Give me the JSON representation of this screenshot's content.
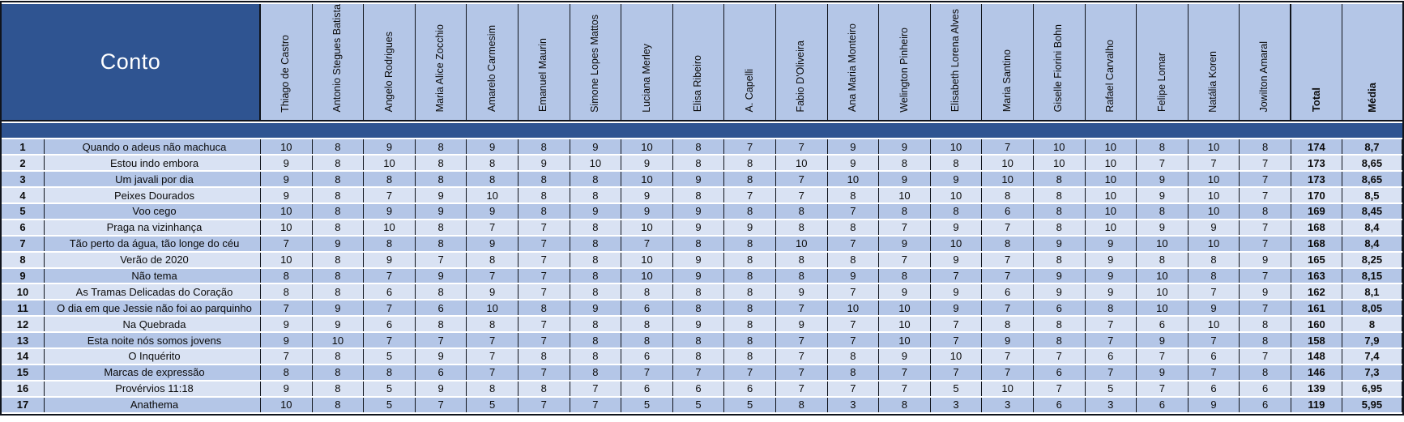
{
  "colors": {
    "header_dark_blue": "#2F5491",
    "header_light_blue": "#B4C6E7",
    "row_stripe_light": "#D9E2F3",
    "grid_border": "#10141C",
    "cell_text": "#0B0B0B",
    "title_text": "#FFFFFF"
  },
  "table": {
    "corner_label": "Conto",
    "total_label": "Total",
    "media_label": "Média",
    "judges": [
      "Thiago de Castro",
      "Antonio Stegues Batista",
      "Angelo Rodrigues",
      "Maria Alice Zocchio",
      "Amarelo Carmesim",
      "Emanuel Maurin",
      "Simone Lopes Mattos",
      "Luciana Merley",
      "Elisa Ribeiro",
      "A. Capelli",
      "Fabio D'Oliveira",
      "Ana Maria Monteiro",
      "Welington Pinheiro",
      "Elisabeth Lorena Alves",
      "Maria Santino",
      "Giselle Fiorini Bohn",
      "Rafael Carvalho",
      "Felipe Lomar",
      "Natália Koren",
      "Jowilton Amaral"
    ],
    "rows": [
      {
        "rank": 1,
        "title": "Quando o adeus não machuca",
        "scores": [
          10,
          8,
          9,
          8,
          9,
          8,
          9,
          10,
          8,
          7,
          7,
          9,
          9,
          10,
          7,
          10,
          10,
          8,
          10,
          8
        ],
        "total": 174,
        "media": "8,7"
      },
      {
        "rank": 2,
        "title": "Estou indo embora",
        "scores": [
          9,
          8,
          10,
          8,
          8,
          9,
          10,
          9,
          8,
          8,
          10,
          9,
          8,
          8,
          10,
          10,
          10,
          7,
          7,
          7
        ],
        "total": 173,
        "media": "8,65"
      },
      {
        "rank": 3,
        "title": "Um javali por dia",
        "scores": [
          9,
          8,
          8,
          8,
          8,
          8,
          8,
          10,
          9,
          8,
          7,
          10,
          9,
          9,
          10,
          8,
          10,
          9,
          10,
          7
        ],
        "total": 173,
        "media": "8,65"
      },
      {
        "rank": 4,
        "title": "Peixes Dourados",
        "scores": [
          9,
          8,
          7,
          9,
          10,
          8,
          8,
          9,
          8,
          7,
          7,
          8,
          10,
          10,
          8,
          8,
          10,
          9,
          10,
          7
        ],
        "total": 170,
        "media": "8,5"
      },
      {
        "rank": 5,
        "title": "Voo cego",
        "scores": [
          10,
          8,
          9,
          9,
          9,
          8,
          9,
          9,
          9,
          8,
          8,
          7,
          8,
          8,
          6,
          8,
          10,
          8,
          10,
          8
        ],
        "total": 169,
        "media": "8,45"
      },
      {
        "rank": 6,
        "title": "Praga na vizinhança",
        "scores": [
          10,
          8,
          10,
          8,
          7,
          7,
          8,
          10,
          9,
          9,
          8,
          8,
          7,
          9,
          7,
          8,
          10,
          9,
          9,
          7
        ],
        "total": 168,
        "media": "8,4"
      },
      {
        "rank": 7,
        "title": "Tão perto da água, tão longe do céu",
        "scores": [
          7,
          9,
          8,
          8,
          9,
          7,
          8,
          7,
          8,
          8,
          10,
          7,
          9,
          10,
          8,
          9,
          9,
          10,
          10,
          7
        ],
        "total": 168,
        "media": "8,4"
      },
      {
        "rank": 8,
        "title": "Verão de 2020",
        "scores": [
          10,
          8,
          9,
          7,
          8,
          7,
          8,
          10,
          9,
          8,
          8,
          8,
          7,
          9,
          7,
          8,
          9,
          8,
          8,
          9
        ],
        "total": 165,
        "media": "8,25"
      },
      {
        "rank": 9,
        "title": "Não tema",
        "scores": [
          8,
          8,
          7,
          9,
          7,
          7,
          8,
          10,
          9,
          8,
          8,
          9,
          8,
          7,
          7,
          9,
          9,
          10,
          8,
          7
        ],
        "total": 163,
        "media": "8,15"
      },
      {
        "rank": 10,
        "title": "As Tramas Delicadas do Coração",
        "scores": [
          8,
          8,
          6,
          8,
          9,
          7,
          8,
          8,
          8,
          8,
          9,
          7,
          9,
          9,
          6,
          9,
          9,
          10,
          7,
          9
        ],
        "total": 162,
        "media": "8,1"
      },
      {
        "rank": 11,
        "title": "O dia em que Jessie não foi ao parquinho",
        "scores": [
          7,
          9,
          7,
          6,
          10,
          8,
          9,
          6,
          8,
          8,
          7,
          10,
          10,
          9,
          7,
          6,
          8,
          10,
          9,
          7
        ],
        "total": 161,
        "media": "8,05"
      },
      {
        "rank": 12,
        "title": "Na Quebrada",
        "scores": [
          9,
          9,
          6,
          8,
          8,
          7,
          8,
          8,
          9,
          8,
          9,
          7,
          10,
          7,
          8,
          8,
          7,
          6,
          10,
          8
        ],
        "total": 160,
        "media": "8"
      },
      {
        "rank": 13,
        "title": "Esta noite nós somos jovens",
        "scores": [
          9,
          10,
          7,
          7,
          7,
          7,
          8,
          8,
          8,
          8,
          7,
          7,
          10,
          7,
          9,
          8,
          7,
          9,
          7,
          8
        ],
        "total": 158,
        "media": "7,9"
      },
      {
        "rank": 14,
        "title": "O Inquérito",
        "scores": [
          7,
          8,
          5,
          9,
          7,
          8,
          8,
          6,
          8,
          8,
          7,
          8,
          9,
          10,
          7,
          7,
          6,
          7,
          6,
          7
        ],
        "total": 148,
        "media": "7,4"
      },
      {
        "rank": 15,
        "title": "Marcas de expressão",
        "scores": [
          8,
          8,
          8,
          6,
          7,
          7,
          8,
          7,
          7,
          7,
          7,
          8,
          7,
          7,
          7,
          6,
          7,
          9,
          7,
          8
        ],
        "total": 146,
        "media": "7,3"
      },
      {
        "rank": 16,
        "title": "Provérvios 11:18",
        "scores": [
          9,
          8,
          5,
          9,
          8,
          8,
          7,
          6,
          6,
          6,
          7,
          7,
          7,
          5,
          10,
          7,
          5,
          7,
          6,
          6
        ],
        "total": 139,
        "media": "6,95"
      },
      {
        "rank": 17,
        "title": "Anathema",
        "scores": [
          10,
          8,
          5,
          7,
          5,
          7,
          7,
          5,
          5,
          5,
          8,
          3,
          8,
          3,
          3,
          6,
          3,
          6,
          9,
          6
        ],
        "total": 119,
        "media": "5,95"
      }
    ]
  }
}
